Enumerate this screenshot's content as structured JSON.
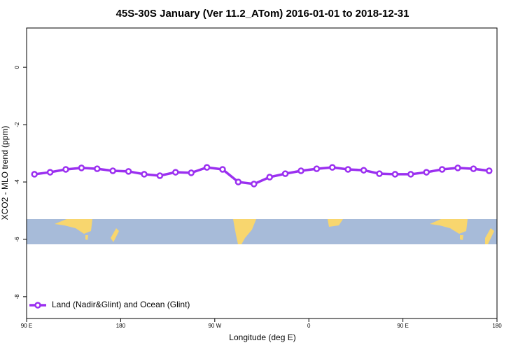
{
  "chart_data": {
    "type": "line",
    "title": "45S-30S January (Ver 11.2_ATom)   2016-01-01 to 2018-12-31",
    "x_label": "Longitude (deg E)",
    "y_label": "XCO2 - MLO trend (ppm)",
    "x": [
      97.5,
      112.5,
      127.5,
      142.5,
      157.5,
      172.5,
      187.5,
      202.5,
      217.5,
      232.5,
      247.5,
      262.5,
      277.5,
      292.5,
      307.5,
      322.5,
      337.5,
      352.5,
      367.5,
      382.5,
      397.5,
      412.5,
      427.5,
      442.5,
      457.5,
      472.5,
      487.5,
      502.5,
      517.5,
      532.5
    ],
    "series": [
      {
        "name": "Land (Nadir&Glint) and Ocean (Glint)",
        "color": "#9b30f0",
        "values": [
          -3.73,
          -3.66,
          -3.56,
          -3.51,
          -3.54,
          -3.61,
          -3.63,
          -3.73,
          -3.78,
          -3.66,
          -3.68,
          -3.49,
          -3.56,
          -4.0,
          -4.07,
          -3.83,
          -3.71,
          -3.61,
          -3.54,
          -3.49,
          -3.56,
          -3.59,
          -3.71,
          -3.73,
          -3.73,
          -3.66,
          -3.56,
          -3.51,
          -3.54,
          -3.61
        ]
      }
    ],
    "xlim": [
      90,
      540
    ],
    "xticks": [
      {
        "value": 90,
        "label": "90 E"
      },
      180,
      {
        "value": 270,
        "label": "90 W"
      },
      0,
      {
        "value": 450,
        "label": "90 E"
      },
      {
        "value": 540,
        "label": "180"
      }
    ],
    "ylim": [
      -8.76,
      1.37
    ],
    "yticks": [
      0,
      -2,
      -4,
      -6,
      -8
    ],
    "legend": "bottom-left"
  }
}
